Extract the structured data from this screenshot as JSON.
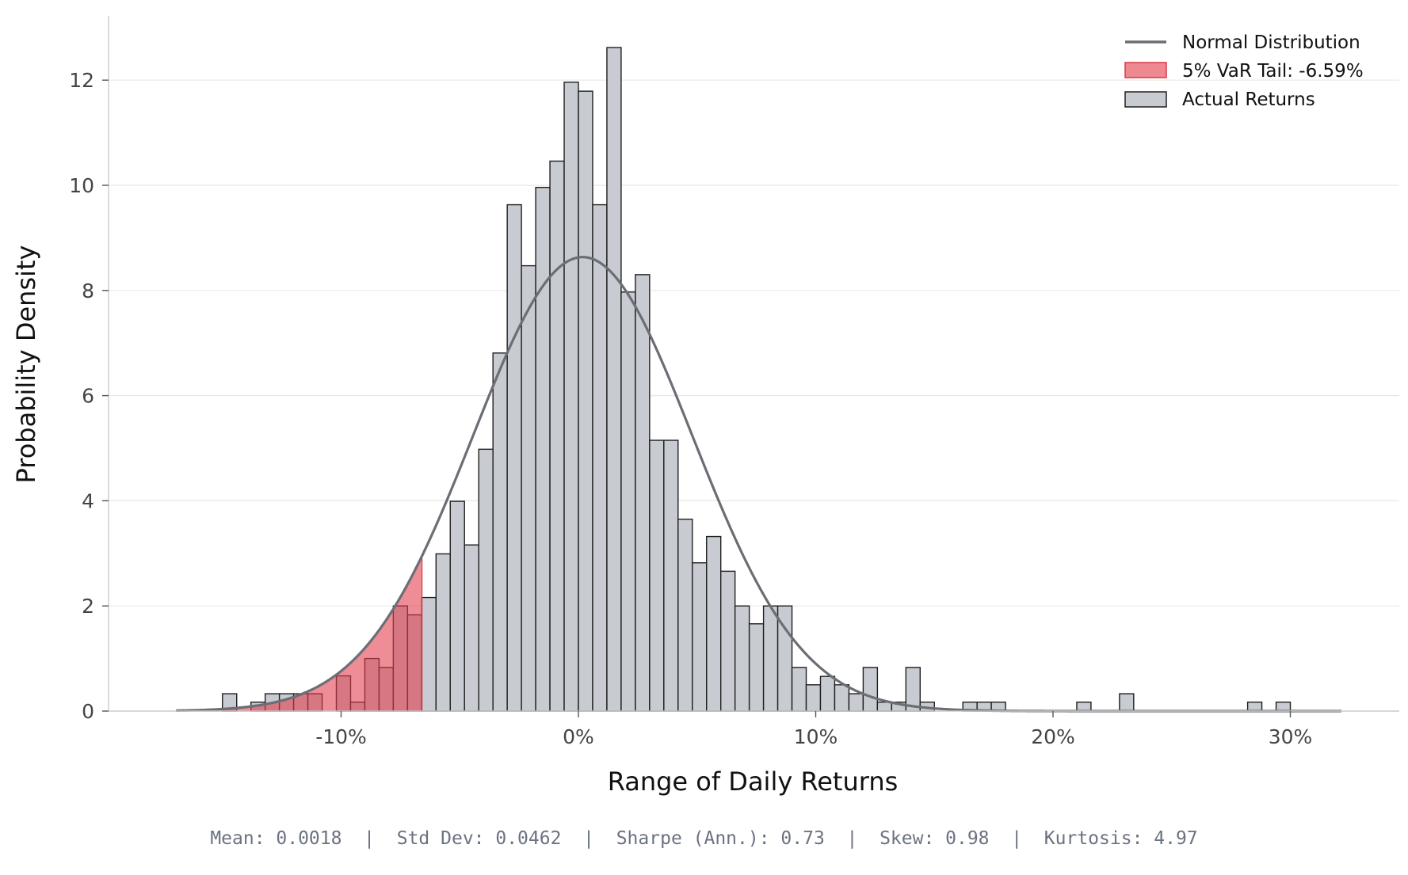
{
  "chart_data": {
    "type": "bar",
    "title": "",
    "xlabel": "Range of Daily Returns",
    "ylabel": "Probability Density",
    "xlim": [
      -0.19,
      0.35
    ],
    "ylim": [
      0,
      13.2
    ],
    "x_ticks": [
      -0.1,
      0,
      0.1,
      0.2,
      0.3
    ],
    "x_tick_labels": [
      "-10%",
      "0%",
      "10%",
      "20%",
      "30%"
    ],
    "y_ticks": [
      0,
      2,
      4,
      6,
      8,
      10,
      12
    ],
    "y_tick_labels": [
      "0",
      "2",
      "4",
      "6",
      "8",
      "10",
      "12"
    ],
    "grid": "horizontal",
    "legend_position": "top-right",
    "bin_width": 0.006,
    "var_threshold": -0.0659,
    "histogram": {
      "name": "Actual Returns",
      "bins": [
        {
          "x0": -0.15,
          "height": 0.33
        },
        {
          "x0": -0.138,
          "height": 0.17
        },
        {
          "x0": -0.132,
          "height": 0.33
        },
        {
          "x0": -0.126,
          "height": 0.33
        },
        {
          "x0": -0.12,
          "height": 0.33
        },
        {
          "x0": -0.114,
          "height": 0.33
        },
        {
          "x0": -0.102,
          "height": 0.67
        },
        {
          "x0": -0.096,
          "height": 0.17
        },
        {
          "x0": -0.09,
          "height": 1.0
        },
        {
          "x0": -0.084,
          "height": 0.83
        },
        {
          "x0": -0.078,
          "height": 2.0
        },
        {
          "x0": -0.072,
          "height": 1.83
        },
        {
          "x0": -0.066,
          "height": 2.16
        },
        {
          "x0": -0.06,
          "height": 2.99
        },
        {
          "x0": -0.054,
          "height": 3.99
        },
        {
          "x0": -0.048,
          "height": 3.16
        },
        {
          "x0": -0.042,
          "height": 4.98
        },
        {
          "x0": -0.036,
          "height": 6.81
        },
        {
          "x0": -0.03,
          "height": 9.63
        },
        {
          "x0": -0.024,
          "height": 8.47
        },
        {
          "x0": -0.018,
          "height": 9.96
        },
        {
          "x0": -0.012,
          "height": 10.46
        },
        {
          "x0": -0.006,
          "height": 11.96
        },
        {
          "x0": 0.0,
          "height": 11.79
        },
        {
          "x0": 0.006,
          "height": 9.63
        },
        {
          "x0": 0.012,
          "height": 12.62
        },
        {
          "x0": 0.018,
          "height": 7.97
        },
        {
          "x0": 0.024,
          "height": 8.3
        },
        {
          "x0": 0.03,
          "height": 5.15
        },
        {
          "x0": 0.036,
          "height": 5.15
        },
        {
          "x0": 0.042,
          "height": 3.65
        },
        {
          "x0": 0.048,
          "height": 2.82
        },
        {
          "x0": 0.054,
          "height": 3.32
        },
        {
          "x0": 0.06,
          "height": 2.66
        },
        {
          "x0": 0.066,
          "height": 2.0
        },
        {
          "x0": 0.072,
          "height": 1.66
        },
        {
          "x0": 0.078,
          "height": 2.0
        },
        {
          "x0": 0.084,
          "height": 2.0
        },
        {
          "x0": 0.09,
          "height": 0.83
        },
        {
          "x0": 0.096,
          "height": 0.5
        },
        {
          "x0": 0.102,
          "height": 0.66
        },
        {
          "x0": 0.108,
          "height": 0.5
        },
        {
          "x0": 0.114,
          "height": 0.33
        },
        {
          "x0": 0.12,
          "height": 0.83
        },
        {
          "x0": 0.126,
          "height": 0.17
        },
        {
          "x0": 0.132,
          "height": 0.17
        },
        {
          "x0": 0.138,
          "height": 0.83
        },
        {
          "x0": 0.144,
          "height": 0.17
        },
        {
          "x0": 0.162,
          "height": 0.17
        },
        {
          "x0": 0.168,
          "height": 0.17
        },
        {
          "x0": 0.174,
          "height": 0.17
        },
        {
          "x0": 0.21,
          "height": 0.17
        },
        {
          "x0": 0.228,
          "height": 0.33
        },
        {
          "x0": 0.282,
          "height": 0.17
        },
        {
          "x0": 0.294,
          "height": 0.17
        }
      ]
    },
    "normal_curve": {
      "name": "Normal Distribution",
      "mean": 0.0018,
      "std": 0.0462,
      "x_range": [
        -0.1695,
        0.3215
      ]
    },
    "var_tail": {
      "name": "5% VaR Tail: -6.59%"
    },
    "legend": [
      {
        "label": "Normal Distribution",
        "kind": "line"
      },
      {
        "label": "5% VaR Tail: -6.59%",
        "kind": "patch-red"
      },
      {
        "label": "Actual Returns",
        "kind": "patch-gray"
      }
    ],
    "colors": {
      "bar_fill": "#c8cbd1",
      "bar_edge": "#1f1f1f",
      "curve": "#6b6e74",
      "tail_fill": "#e23b4a",
      "tail_edge": "#d83a48",
      "grid": "#e8e8e8",
      "axis": "#cccccc"
    }
  },
  "stats": {
    "mean": "Mean: 0.0018",
    "std_dev": "Std Dev: 0.0462",
    "sharpe": "Sharpe (Ann.): 0.73",
    "skew": "Skew: 0.98",
    "kurtosis": "Kurtosis: 4.97",
    "separator": "  |  "
  }
}
